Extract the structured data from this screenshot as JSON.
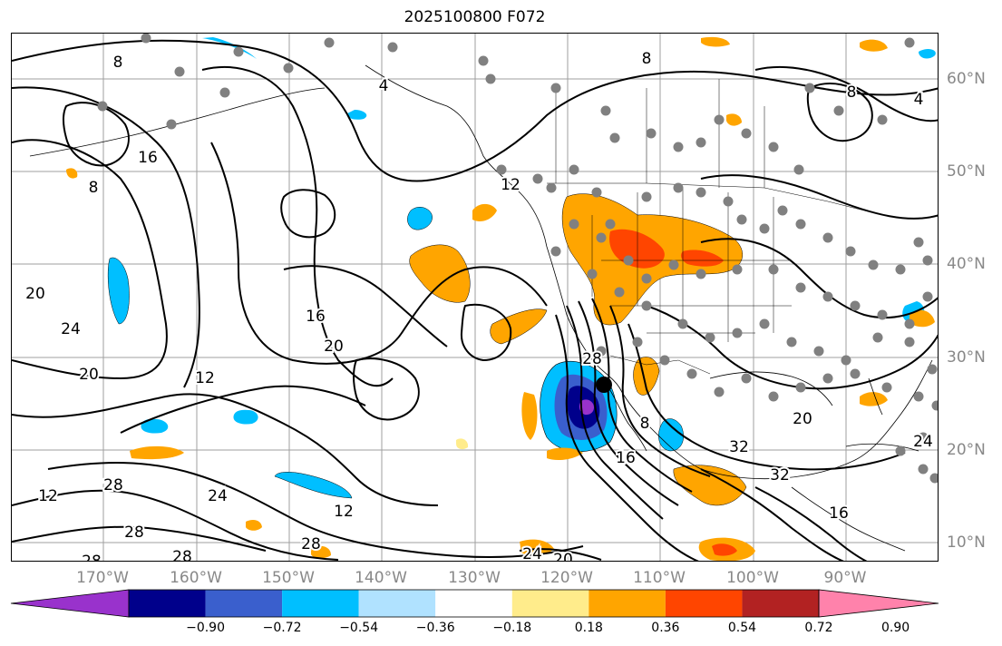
{
  "title": "2025100800 F072",
  "lat_labels": [
    "60°N",
    "50°N",
    "40°N",
    "30°N",
    "20°N",
    "10°N"
  ],
  "lon_labels": [
    "170°W",
    "160°W",
    "150°W",
    "140°W",
    "130°W",
    "120°W",
    "110°W",
    "100°W",
    "90°W"
  ],
  "contour_labels": [
    "8",
    "8",
    "8",
    "4",
    "16",
    "8",
    "4",
    "12",
    "20",
    "24",
    "20",
    "16",
    "20",
    "12",
    "28",
    "8",
    "16",
    "32",
    "32",
    "20",
    "24",
    "12",
    "24",
    "28",
    "28",
    "28",
    "16",
    "12",
    "28",
    "24",
    "20",
    "28"
  ],
  "colorbar": {
    "ticks": [
      "−0.90",
      "−0.72",
      "−0.54",
      "−0.36",
      "−0.18",
      "0.18",
      "0.36",
      "0.54",
      "0.72",
      "0.90"
    ],
    "colors": [
      "#9932cc",
      "#00008b",
      "#3a5fcd",
      "#00bfff",
      "#b0e2ff",
      "#ffffff",
      "#ffec8b",
      "#ffa500",
      "#ff4500",
      "#b22222",
      "#ff82ab"
    ]
  },
  "colors": {
    "contour": "#000000",
    "station_dot": "#808080",
    "grid": "#888888",
    "axis_label": "#888888"
  },
  "storm_marker": "filled-black-circle"
}
